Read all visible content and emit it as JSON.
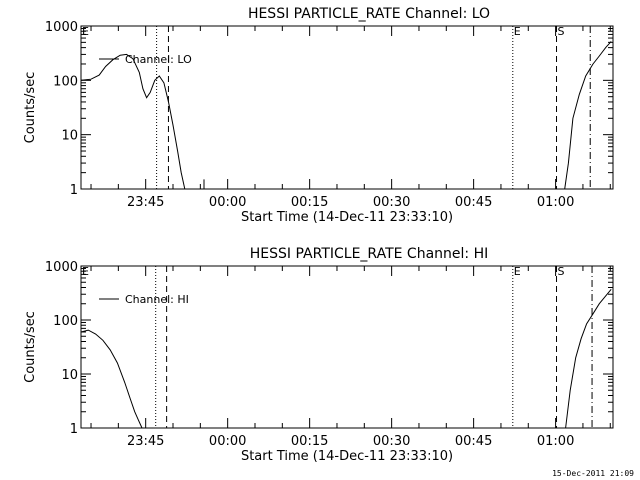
{
  "chart_data": [
    {
      "type": "line",
      "title": "HESSI PARTICLE_RATE Channel: LO",
      "xlabel": "Start Time (14-Dec-11 23:33:10)",
      "ylabel": "Counts/sec",
      "yscale": "log",
      "ylim": [
        1,
        1000
      ],
      "xlim": [
        "23:33:10",
        "01:10:30"
      ],
      "xticks": [
        "23:45",
        "00:00",
        "00:15",
        "00:30",
        "00:45",
        "01:00"
      ],
      "yticks": [
        "1",
        "10",
        "100",
        "1000"
      ],
      "legend": "top-left",
      "series": [
        {
          "name": "Channel: LO",
          "x": [
            "23:33:10",
            "23:35:00",
            "23:36:30",
            "23:37:40",
            "23:39:00",
            "23:40:20",
            "23:41:30",
            "23:42:40",
            "23:43:50",
            "23:44:30",
            "23:45:10",
            "23:45:50",
            "23:46:40",
            "23:47:30",
            "23:48:20",
            "23:49:10",
            "23:50:00",
            "23:50:50",
            "23:51:30",
            "23:52:10"
          ],
          "y": [
            100,
            105,
            125,
            180,
            240,
            290,
            300,
            250,
            140,
            70,
            48,
            60,
            100,
            120,
            90,
            40,
            15,
            5,
            2,
            1
          ]
        },
        {
          "name": "Channel: LO",
          "x": [
            "23:55:40",
            "23:55:40"
          ],
          "y": [
            1,
            1.5
          ]
        },
        {
          "name": "Channel: LO",
          "x": [
            "01:01:40",
            "01:02:20",
            "01:03:10",
            "01:04:20",
            "01:05:30",
            "01:06:50",
            "01:08:00",
            "01:09:10",
            "01:10:10"
          ],
          "y": [
            1,
            3,
            20,
            55,
            120,
            200,
            280,
            400,
            520
          ]
        }
      ],
      "markers": [
        {
          "x": "23:47:00",
          "style": "dotted",
          "label": ""
        },
        {
          "x": "23:49:10",
          "style": "dashed",
          "label": ""
        },
        {
          "x": "00:52:10",
          "style": "dotted",
          "label": "E"
        },
        {
          "x": "01:00:10",
          "style": "dashed",
          "label": "S"
        },
        {
          "x": "01:06:20",
          "style": "dashdot",
          "label": ""
        },
        {
          "x": "23:33:10",
          "style": "none",
          "label": "E"
        }
      ]
    },
    {
      "type": "line",
      "title": "HESSI PARTICLE_RATE Channel: HI",
      "xlabel": "Start Time (14-Dec-11 23:33:10)",
      "ylabel": "Counts/sec",
      "yscale": "log",
      "ylim": [
        1,
        1000
      ],
      "xlim": [
        "23:33:10",
        "01:10:30"
      ],
      "xticks": [
        "23:45",
        "00:00",
        "00:15",
        "00:30",
        "00:45",
        "01:00"
      ],
      "yticks": [
        "1",
        "10",
        "100",
        "1000"
      ],
      "legend": "top-left",
      "series": [
        {
          "name": "Channel: HI",
          "x": [
            "23:33:10",
            "23:34:30",
            "23:35:50",
            "23:37:10",
            "23:38:30",
            "23:39:50",
            "23:41:10",
            "23:42:10",
            "23:43:00",
            "23:43:40",
            "23:44:20"
          ],
          "y": [
            60,
            65,
            55,
            42,
            28,
            16,
            7,
            3.5,
            2,
            1.4,
            1
          ]
        },
        {
          "name": "Channel: HI",
          "x": [
            "01:01:50",
            "01:02:40",
            "01:03:40",
            "01:04:40",
            "01:05:40",
            "01:06:50",
            "01:08:00",
            "01:09:10",
            "01:10:10"
          ],
          "y": [
            1,
            5,
            20,
            45,
            85,
            130,
            200,
            280,
            370
          ]
        }
      ],
      "markers": [
        {
          "x": "23:46:50",
          "style": "dotted",
          "label": ""
        },
        {
          "x": "23:48:50",
          "style": "dashed",
          "label": ""
        },
        {
          "x": "00:52:10",
          "style": "dotted",
          "label": "E"
        },
        {
          "x": "01:00:10",
          "style": "dashed",
          "label": "S"
        },
        {
          "x": "01:06:40",
          "style": "dashdot",
          "label": ""
        },
        {
          "x": "23:33:10",
          "style": "none",
          "label": "E"
        }
      ]
    }
  ],
  "footer": "15-Dec-2011 21:09"
}
